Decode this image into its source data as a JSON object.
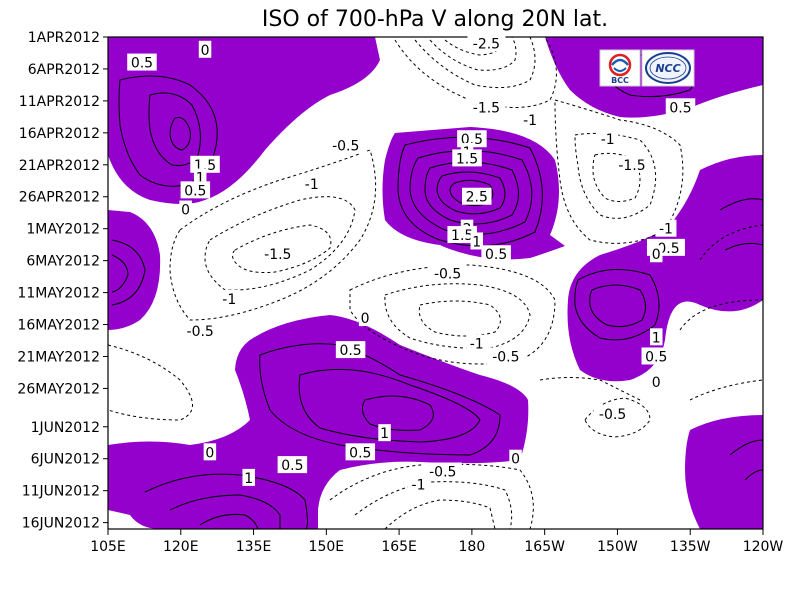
{
  "chart_data": {
    "type": "contour",
    "title": "ISO of 700-hPa V along 20N lat.",
    "xlabel": "",
    "ylabel": "",
    "x_ticks": [
      "105E",
      "120E",
      "135E",
      "150E",
      "165E",
      "180",
      "165W",
      "150W",
      "135W",
      "120W"
    ],
    "y_ticks": [
      "1APR2012",
      "6APR2012",
      "11APR2012",
      "16APR2012",
      "21APR2012",
      "26APR2012",
      "1MAY2012",
      "6MAY2012",
      "11MAY2012",
      "16MAY2012",
      "21MAY2012",
      "26MAY2012",
      "1JUN2012",
      "6JUN2012",
      "11JUN2012",
      "16JUN2012"
    ],
    "x_range": [
      "105E",
      "120W"
    ],
    "y_range": [
      "1APR2012",
      "17JUN2012"
    ],
    "contour_levels": [
      -2.5,
      -2,
      -1.5,
      -1,
      -0.5,
      0,
      0.5,
      1,
      1.5,
      2,
      2.5
    ],
    "shaded_levels": "values > 0 shaded purple",
    "negative_linestyle": "dashed",
    "fill_color": "#9400cc",
    "contour_labels": [
      {
        "lon": 125,
        "date": "3APR2012",
        "text": "0"
      },
      {
        "lon": 112,
        "date": "5APR2012",
        "text": "0.5"
      },
      {
        "lon": 125,
        "date": "21APR2012",
        "text": "1.5"
      },
      {
        "lon": 124,
        "date": "23APR2012",
        "text": "1"
      },
      {
        "lon": 123,
        "date": "25APR2012",
        "text": "0.5"
      },
      {
        "lon": 121,
        "date": "28APR2012",
        "text": "0"
      },
      {
        "lon": 154,
        "date": "18APR2012",
        "text": "-0.5"
      },
      {
        "lon": 147,
        "date": "24APR2012",
        "text": "-1"
      },
      {
        "lon": 140,
        "date": "5MAY2012",
        "text": "-1.5"
      },
      {
        "lon": 130,
        "date": "12MAY2012",
        "text": "-1"
      },
      {
        "lon": 124,
        "date": "17MAY2012",
        "text": "-0.5"
      },
      {
        "lon": 183,
        "date": "2APR2012",
        "text": "-2.5"
      },
      {
        "lon": 183,
        "date": "12APR2012",
        "text": "-1.5"
      },
      {
        "lon": 192,
        "date": "14APR2012",
        "text": "-1"
      },
      {
        "lon": 180,
        "date": "17APR2012",
        "text": "0.5"
      },
      {
        "lon": 179,
        "date": "19APR2012",
        "text": "1"
      },
      {
        "lon": 179,
        "date": "20APR2012",
        "text": "1.5"
      },
      {
        "lon": 181,
        "date": "26APR2012",
        "text": "2.5"
      },
      {
        "lon": 179,
        "date": "1MAY2012",
        "text": "2"
      },
      {
        "lon": 178,
        "date": "2MAY2012",
        "text": "1.5"
      },
      {
        "lon": 181,
        "date": "3MAY2012",
        "text": "1"
      },
      {
        "lon": 185,
        "date": "5MAY2012",
        "text": "0.5"
      },
      {
        "lon": 175,
        "date": "8MAY2012",
        "text": "-0.5"
      },
      {
        "lon": 181,
        "date": "19MAY2012",
        "text": "-1"
      },
      {
        "lon": 187,
        "date": "21MAY2012",
        "text": "-0.5"
      },
      {
        "lon": 158,
        "date": "15MAY2012",
        "text": "0"
      },
      {
        "lon": 155,
        "date": "20MAY2012",
        "text": "0.5"
      },
      {
        "lon": 223,
        "date": "12APR2012",
        "text": "0.5"
      },
      {
        "lon": 208,
        "date": "17APR2012",
        "text": "-1"
      },
      {
        "lon": 213,
        "date": "21APR2012",
        "text": "-1.5"
      },
      {
        "lon": 220,
        "date": "1MAY2012",
        "text": "-1"
      },
      {
        "lon": 220,
        "date": "4MAY2012",
        "text": "-0.5"
      },
      {
        "lon": 218,
        "date": "5MAY2012",
        "text": "0"
      },
      {
        "lon": 218,
        "date": "18MAY2012",
        "text": "1"
      },
      {
        "lon": 218,
        "date": "21MAY2012",
        "text": "0.5"
      },
      {
        "lon": 218,
        "date": "25MAY2012",
        "text": "0"
      },
      {
        "lon": 209,
        "date": "30MAY2012",
        "text": "-0.5"
      },
      {
        "lon": 162,
        "date": "2JUN2012",
        "text": "1"
      },
      {
        "lon": 157,
        "date": "5JUN2012",
        "text": "0.5"
      },
      {
        "lon": 126,
        "date": "5JUN2012",
        "text": "0"
      },
      {
        "lon": 143,
        "date": "7JUN2012",
        "text": "0.5"
      },
      {
        "lon": 134,
        "date": "9JUN2012",
        "text": "1"
      },
      {
        "lon": 174,
        "date": "8JUN2012",
        "text": "-0.5"
      },
      {
        "lon": 169,
        "date": "10JUN2012",
        "text": "-1"
      },
      {
        "lon": 189,
        "date": "6JUN2012",
        "text": "0"
      }
    ]
  },
  "logos": {
    "left": {
      "text": "BCC",
      "icon": "bcc-logo"
    },
    "right": {
      "text": "NCC",
      "icon": "ncc-logo"
    }
  }
}
